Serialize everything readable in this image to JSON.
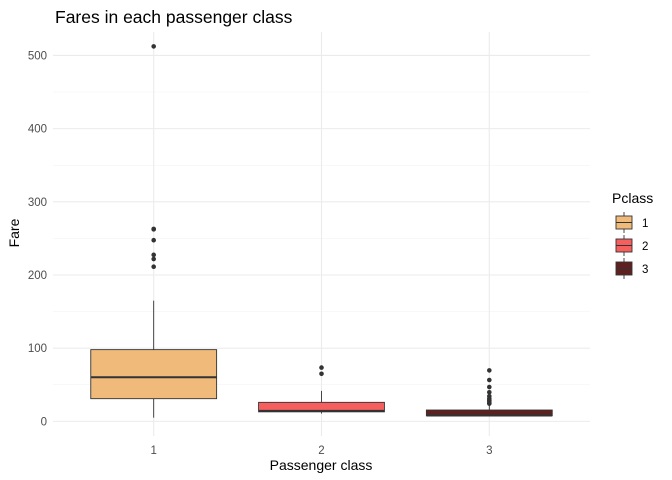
{
  "chart_data": {
    "type": "boxplot",
    "title": "Fares in each passenger class",
    "xlabel": "Passenger class",
    "ylabel": "Fare",
    "ylim": [
      -20,
      532
    ],
    "y_ticks": [
      0,
      100,
      200,
      300,
      400,
      500
    ],
    "grid": true,
    "legend": {
      "title": "Pclass",
      "position": "right"
    },
    "categories": [
      "1",
      "2",
      "3"
    ],
    "boxes": [
      {
        "category": "1",
        "color": "#F0BB7A",
        "whisker_low": 5,
        "q1": 31,
        "median": 60.3,
        "q3": 98,
        "whisker_high": 164.9,
        "outliers": [
          211.3,
          221.8,
          227.5,
          247.5,
          262.4,
          263,
          512.3
        ]
      },
      {
        "category": "2",
        "color": "#F5605F",
        "whisker_low": 10.5,
        "q1": 13,
        "median": 14.3,
        "q3": 26,
        "whisker_high": 41.6,
        "outliers": [
          65,
          73.5
        ]
      },
      {
        "category": "3",
        "color": "#5E2120",
        "whisker_low": 7.1,
        "q1": 7.75,
        "median": 8.05,
        "q3": 15.5,
        "whisker_high": 22.5,
        "outliers": [
          24.2,
          25.5,
          27.9,
          29.1,
          31.3,
          34.4,
          39.7,
          46.9,
          56.5,
          69.6
        ]
      }
    ]
  }
}
